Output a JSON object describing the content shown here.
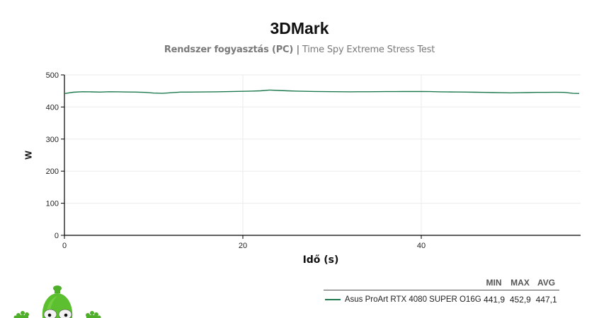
{
  "header": {
    "title": "3DMark",
    "subtitle_bold": "Rendszer fogyasztás (PC) |",
    "subtitle_light": " Time Spy Extreme Stress Test"
  },
  "axes": {
    "y_label": "W",
    "x_label": "Idő (s)",
    "y_ticks": [
      "500",
      "400",
      "300",
      "200",
      "100",
      "0"
    ],
    "x_ticks": [
      "0",
      "20",
      "40"
    ]
  },
  "legend": {
    "headers": [
      "MIN",
      "MAX",
      "AVG"
    ],
    "rows": [
      {
        "name": "Asus ProArt RTX 4080 SUPER O16G",
        "min": "441,9",
        "max": "452,9",
        "avg": "447,1",
        "color": "#1e7a4e"
      }
    ]
  },
  "colors": {
    "series": "#1e7a4e",
    "grid": "#ebebeb",
    "axis": "#000000"
  },
  "chart_data": {
    "type": "line",
    "title": "3DMark",
    "subtitle": "Rendszer fogyasztás (PC) | Time Spy Extreme Stress Test",
    "xlabel": "Idő (s)",
    "ylabel": "W",
    "xlim": [
      0,
      58
    ],
    "ylim": [
      0,
      500
    ],
    "x_ticks": [
      0,
      20,
      40
    ],
    "y_ticks": [
      0,
      100,
      200,
      300,
      400,
      500
    ],
    "grid": true,
    "legend_position": "bottom-right",
    "series": [
      {
        "name": "Asus ProArt RTX 4080 SUPER O16G",
        "color": "#1e7a4e",
        "min": 441.9,
        "max": 452.9,
        "avg": 447.1,
        "x": [
          0,
          1,
          2,
          3,
          4,
          5,
          6,
          7,
          8,
          9,
          10,
          11,
          12,
          13,
          14,
          15,
          16,
          17,
          18,
          19,
          20,
          21,
          22,
          23,
          24,
          25,
          26,
          27,
          28,
          29,
          30,
          31,
          32,
          33,
          34,
          35,
          36,
          37,
          38,
          39,
          40,
          41,
          42,
          43,
          44,
          45,
          46,
          47,
          48,
          49,
          50,
          51,
          52,
          53,
          54,
          55,
          56,
          57,
          58
        ],
        "values": [
          441.9,
          446,
          447.5,
          447.2,
          446.5,
          447.5,
          447.3,
          446.8,
          446.5,
          445.5,
          443.5,
          442.5,
          444.5,
          446.5,
          446.5,
          446.8,
          447,
          447.3,
          447.8,
          448.5,
          449,
          449.5,
          450.5,
          452.9,
          451.5,
          450.5,
          449.5,
          449,
          448.5,
          448,
          447.8,
          447.5,
          447.3,
          447.5,
          447.6,
          447.8,
          448,
          448,
          448.2,
          448.3,
          448.5,
          448,
          447.3,
          447,
          446.8,
          446.5,
          446,
          445.5,
          445,
          444.5,
          444,
          444.5,
          445,
          445.5,
          445.5,
          445.8,
          445.5,
          442.5,
          442
        ]
      }
    ]
  }
}
